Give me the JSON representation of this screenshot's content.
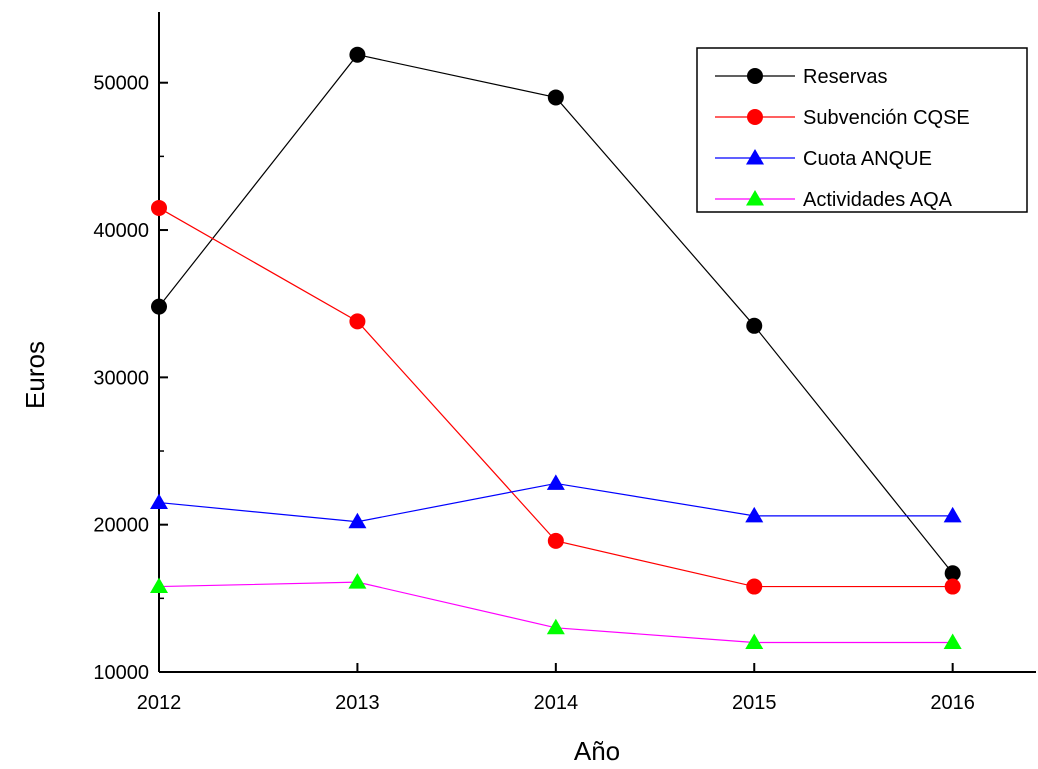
{
  "chart_data": {
    "type": "line",
    "title": "",
    "xlabel": "Año",
    "ylabel": "Euros",
    "x": [
      2012,
      2013,
      2014,
      2015,
      2016
    ],
    "xticks": [
      "2012",
      "2013",
      "2014",
      "2015",
      "2016"
    ],
    "yticks": [
      "10000",
      "20000",
      "30000",
      "40000",
      "50000"
    ],
    "xlim": [
      2012,
      2016.42
    ],
    "ylim": [
      10000,
      54800
    ],
    "grid": false,
    "legend_position": "top-right",
    "series": [
      {
        "name": "Reservas",
        "values": [
          34800,
          51900,
          49000,
          33500,
          16700
        ],
        "color": "#000000",
        "marker_fill": "#000000",
        "marker": "circle"
      },
      {
        "name": "Subvención CQSE",
        "values": [
          41500,
          33800,
          18900,
          15800,
          15800
        ],
        "color": "#ff0000",
        "marker_fill": "#ff0000",
        "marker": "circle"
      },
      {
        "name": "Cuota ANQUE",
        "values": [
          21500,
          20200,
          22800,
          20600,
          20600
        ],
        "color": "#0000ff",
        "marker_fill": "#0000ff",
        "marker": "triangle"
      },
      {
        "name": "Actividades AQA",
        "values": [
          15800,
          16100,
          13000,
          12000,
          12000
        ],
        "color": "#ff00ff",
        "marker_fill": "#00ff00",
        "marker": "triangle"
      }
    ]
  }
}
